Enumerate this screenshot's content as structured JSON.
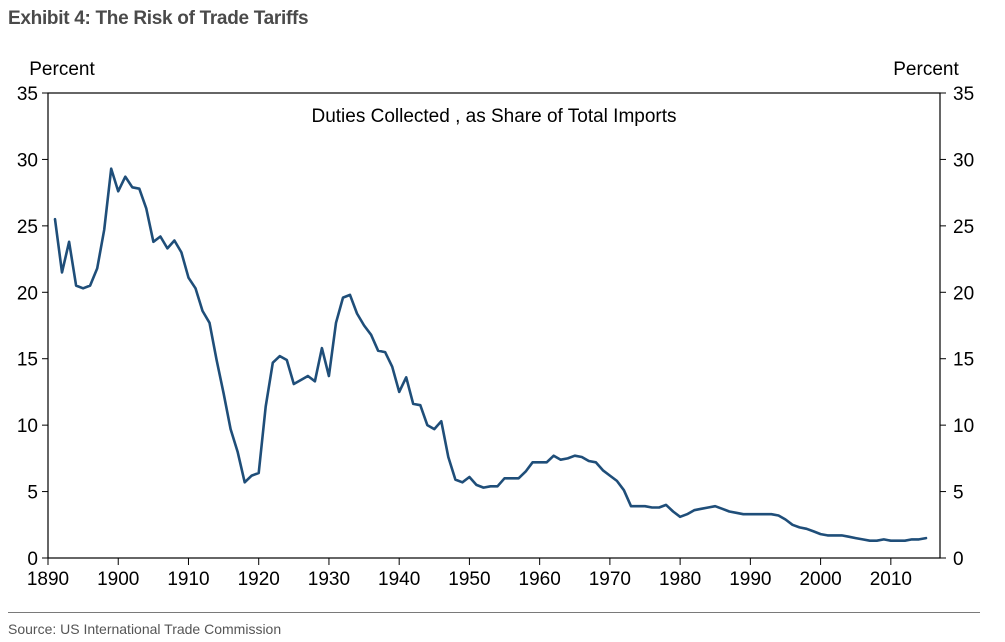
{
  "exhibit": {
    "title": "Exhibit 4: The Risk of Trade Tariffs"
  },
  "source": "Source: US International Trade Commission",
  "colors": {
    "line": "#1f4e79",
    "axis": "#000000",
    "title": "#4a4a4a"
  },
  "chart_data": {
    "type": "line",
    "title": "Duties Collected , as Share of Total Imports",
    "ylabel_left": "Percent",
    "ylabel_right": "Percent",
    "xlim": [
      1890,
      2017
    ],
    "ylim": [
      0,
      35
    ],
    "x_ticks": [
      1890,
      1900,
      1910,
      1920,
      1930,
      1940,
      1950,
      1960,
      1970,
      1980,
      1990,
      2000,
      2010
    ],
    "x_tick_labels": [
      "1890",
      "1900",
      "1910",
      "1920",
      "1930",
      "1940",
      "1950",
      "1960",
      "1970",
      "1980",
      "1990",
      "2000",
      "2010"
    ],
    "y_ticks": [
      0,
      5,
      10,
      15,
      20,
      25,
      30,
      35
    ],
    "y_tick_labels": [
      "0",
      "5",
      "10",
      "15",
      "20",
      "25",
      "30",
      "35"
    ],
    "grid": false,
    "series": [
      {
        "name": "Duties Collected, as Share of Total Imports",
        "x": [
          1891,
          1892,
          1893,
          1894,
          1895,
          1896,
          1897,
          1898,
          1899,
          1900,
          1901,
          1902,
          1903,
          1904,
          1905,
          1906,
          1907,
          1908,
          1909,
          1910,
          1911,
          1912,
          1913,
          1914,
          1915,
          1916,
          1917,
          1918,
          1919,
          1920,
          1921,
          1922,
          1923,
          1924,
          1925,
          1926,
          1927,
          1928,
          1929,
          1930,
          1931,
          1932,
          1933,
          1934,
          1935,
          1936,
          1937,
          1938,
          1939,
          1940,
          1941,
          1942,
          1943,
          1944,
          1945,
          1946,
          1947,
          1948,
          1949,
          1950,
          1951,
          1952,
          1953,
          1954,
          1955,
          1956,
          1957,
          1958,
          1959,
          1960,
          1961,
          1962,
          1963,
          1964,
          1965,
          1966,
          1967,
          1968,
          1969,
          1970,
          1971,
          1972,
          1973,
          1974,
          1975,
          1976,
          1977,
          1978,
          1979,
          1980,
          1981,
          1982,
          1983,
          1984,
          1985,
          1986,
          1987,
          1988,
          1989,
          1990,
          1991,
          1992,
          1993,
          1994,
          1995,
          1996,
          1997,
          1998,
          1999,
          2000,
          2001,
          2002,
          2003,
          2004,
          2005,
          2006,
          2007,
          2008,
          2009,
          2010,
          2011,
          2012,
          2013,
          2014,
          2015
        ],
        "values": [
          25.5,
          21.5,
          23.8,
          20.5,
          20.3,
          20.5,
          21.8,
          24.7,
          29.3,
          27.6,
          28.7,
          27.9,
          27.8,
          26.3,
          23.8,
          24.2,
          23.3,
          23.9,
          23.0,
          21.1,
          20.3,
          18.6,
          17.7,
          14.9,
          12.4,
          9.7,
          8.0,
          5.7,
          6.2,
          6.4,
          11.4,
          14.7,
          15.2,
          14.9,
          13.1,
          13.4,
          13.7,
          13.3,
          15.8,
          13.7,
          17.7,
          19.6,
          19.8,
          18.4,
          17.5,
          16.8,
          15.6,
          15.5,
          14.4,
          12.5,
          13.6,
          11.6,
          11.5,
          10.0,
          9.7,
          10.3,
          7.6,
          5.9,
          5.7,
          6.1,
          5.5,
          5.3,
          5.4,
          5.4,
          6.0,
          6.0,
          6.0,
          6.5,
          7.2,
          7.2,
          7.2,
          7.7,
          7.4,
          7.5,
          7.7,
          7.6,
          7.3,
          7.2,
          6.6,
          6.2,
          5.8,
          5.1,
          3.9,
          3.9,
          3.9,
          3.8,
          3.8,
          4.0,
          3.5,
          3.1,
          3.3,
          3.6,
          3.7,
          3.8,
          3.9,
          3.7,
          3.5,
          3.4,
          3.3,
          3.3,
          3.3,
          3.3,
          3.3,
          3.2,
          2.9,
          2.5,
          2.3,
          2.2,
          2.0,
          1.8,
          1.7,
          1.7,
          1.7,
          1.6,
          1.5,
          1.4,
          1.3,
          1.3,
          1.4,
          1.3,
          1.3,
          1.3,
          1.4,
          1.4,
          1.5
        ]
      }
    ]
  }
}
